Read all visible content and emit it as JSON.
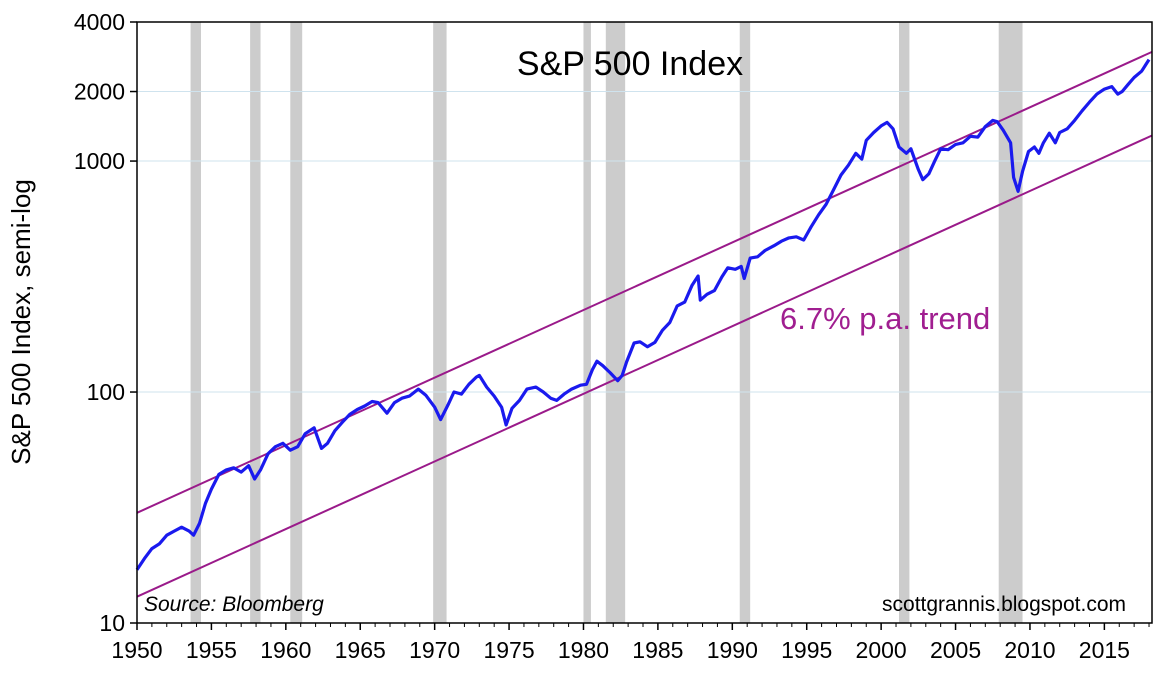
{
  "chart_data": {
    "type": "line",
    "title": "S&P 500 Index",
    "ylabel": "S&P 500 Index, semi-log",
    "xlabel": "",
    "yscale": "log",
    "xlim": [
      1950,
      2018.2
    ],
    "ylim": [
      10,
      4000
    ],
    "x_ticks": [
      1950,
      1955,
      1960,
      1965,
      1970,
      1975,
      1980,
      1985,
      1990,
      1995,
      2000,
      2005,
      2010,
      2015
    ],
    "x_tick_labels": [
      "1950",
      "1955",
      "1960",
      "1965",
      "1970",
      "1975",
      "1980",
      "1985",
      "1990",
      "1995",
      "2000",
      "2005",
      "2010",
      "2015"
    ],
    "y_ticks": [
      10,
      100,
      1000,
      2000,
      4000
    ],
    "y_tick_labels": [
      "10",
      "100",
      "1000",
      "2000",
      "4000"
    ],
    "grid": {
      "horizontal": true,
      "vertical": false
    },
    "recessions": [
      [
        1953.6,
        1954.3
      ],
      [
        1957.6,
        1958.3
      ],
      [
        1960.3,
        1961.1
      ],
      [
        1969.9,
        1970.8
      ],
      [
        1980.0,
        1980.5
      ],
      [
        1981.5,
        1982.8
      ],
      [
        1990.5,
        1991.2
      ],
      [
        2001.2,
        2001.9
      ],
      [
        2007.9,
        2009.5
      ]
    ],
    "series": [
      {
        "color": "#1a1aee",
        "x": [
          1950.0,
          1950.5,
          1951.0,
          1951.5,
          1952.0,
          1952.5,
          1953.0,
          1953.5,
          1953.8,
          1954.2,
          1954.6,
          1955.0,
          1955.5,
          1956.0,
          1956.5,
          1957.0,
          1957.5,
          1957.9,
          1958.3,
          1958.8,
          1959.3,
          1959.8,
          1960.3,
          1960.8,
          1961.3,
          1961.9,
          1962.4,
          1962.8,
          1963.3,
          1963.8,
          1964.3,
          1964.8,
          1965.3,
          1965.8,
          1966.2,
          1966.8,
          1967.3,
          1967.8,
          1968.3,
          1968.9,
          1969.4,
          1970.0,
          1970.4,
          1970.9,
          1971.3,
          1971.8,
          1972.3,
          1972.8,
          1973.0,
          1973.5,
          1974.0,
          1974.5,
          1974.8,
          1975.2,
          1975.7,
          1976.2,
          1976.8,
          1977.3,
          1977.8,
          1978.2,
          1978.7,
          1979.2,
          1979.8,
          1980.2,
          1980.6,
          1980.9,
          1981.3,
          1981.8,
          1982.3,
          1982.6,
          1982.9,
          1983.4,
          1983.8,
          1984.3,
          1984.8,
          1985.3,
          1985.8,
          1986.3,
          1986.8,
          1987.3,
          1987.7,
          1987.85,
          1988.3,
          1988.8,
          1989.3,
          1989.7,
          1990.2,
          1990.6,
          1990.8,
          1991.2,
          1991.7,
          1992.2,
          1992.8,
          1993.3,
          1993.8,
          1994.3,
          1994.8,
          1995.3,
          1995.8,
          1996.3,
          1996.8,
          1997.3,
          1997.8,
          1998.3,
          1998.7,
          1999.0,
          1999.5,
          2000.0,
          2000.4,
          2000.8,
          2001.2,
          2001.7,
          2002.0,
          2002.5,
          2002.8,
          2003.2,
          2003.6,
          2004.0,
          2004.5,
          2005.0,
          2005.5,
          2006.0,
          2006.5,
          2007.0,
          2007.5,
          2007.8,
          2008.2,
          2008.7,
          2008.9,
          2009.2,
          2009.5,
          2009.9,
          2010.3,
          2010.6,
          2010.9,
          2011.3,
          2011.7,
          2012.0,
          2012.5,
          2013.0,
          2013.5,
          2014.0,
          2014.5,
          2015.0,
          2015.5,
          2015.9,
          2016.2,
          2016.6,
          2017.0,
          2017.5,
          2018.0
        ],
        "y": [
          17,
          19,
          21,
          22,
          24,
          25,
          26,
          25,
          24,
          27,
          33,
          38,
          44,
          46,
          47,
          45,
          48,
          42,
          46,
          54,
          58,
          60,
          56,
          58,
          66,
          70,
          57,
          60,
          68,
          74,
          80,
          84,
          87,
          91,
          90,
          81,
          90,
          94,
          96,
          103,
          97,
          86,
          76,
          88,
          100,
          98,
          108,
          116,
          118,
          105,
          96,
          86,
          72,
          85,
          92,
          103,
          105,
          100,
          94,
          92,
          98,
          103,
          107,
          108,
          125,
          136,
          130,
          121,
          112,
          118,
          135,
          163,
          165,
          157,
          164,
          185,
          200,
          236,
          245,
          290,
          318,
          250,
          265,
          275,
          315,
          345,
          340,
          350,
          310,
          380,
          385,
          410,
          430,
          450,
          465,
          470,
          455,
          520,
          585,
          650,
          750,
          870,
          960,
          1080,
          1020,
          1230,
          1330,
          1420,
          1470,
          1380,
          1150,
          1080,
          1130,
          920,
          830,
          880,
          1000,
          1130,
          1120,
          1180,
          1200,
          1280,
          1270,
          1410,
          1500,
          1480,
          1360,
          1200,
          850,
          740,
          900,
          1100,
          1150,
          1080,
          1200,
          1320,
          1200,
          1330,
          1380,
          1500,
          1650,
          1800,
          1950,
          2050,
          2100,
          1950,
          2000,
          2150,
          2300,
          2450,
          2750
        ]
      }
    ],
    "trend_lines": [
      {
        "color": "#9a1a8a",
        "x": [
          1950,
          2018.2
        ],
        "y": [
          30,
          2970
        ]
      },
      {
        "color": "#9a1a8a",
        "x": [
          1950,
          2018.2
        ],
        "y": [
          13,
          1290
        ]
      }
    ],
    "annotations": {
      "trend_label": "6.7% p.a. trend",
      "trend_color": "#a01e90",
      "source": "Source: Bloomberg",
      "watermark": "scottgrannis.blogspot.com"
    }
  }
}
